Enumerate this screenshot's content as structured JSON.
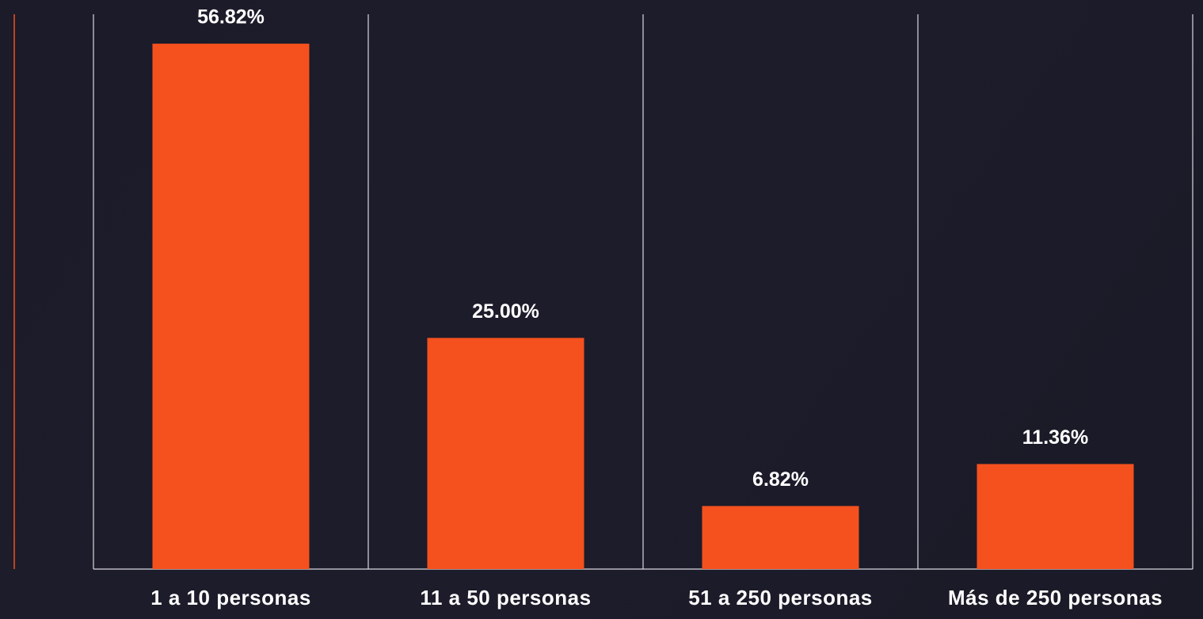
{
  "chart_data": {
    "type": "bar",
    "categories": [
      "1 a 10 personas",
      "11 a 50 personas",
      "51 a 250 personas",
      "Más de 250 personas"
    ],
    "values": [
      56.82,
      25,
      6.82,
      11.36
    ],
    "value_labels": [
      "56.82%",
      "25.00%",
      "6.82%",
      "11.36%"
    ],
    "color": "#f4511e",
    "ylim": [
      0,
      60
    ]
  }
}
